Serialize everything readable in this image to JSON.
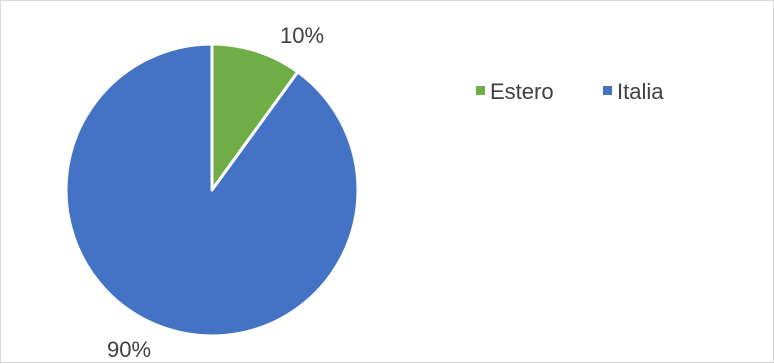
{
  "chart_data": {
    "type": "pie",
    "slices": [
      {
        "label": "Estero",
        "value": 10,
        "color": "#70ad47",
        "data_label": "10%"
      },
      {
        "label": "Italia",
        "value": 90,
        "color": "#4472c4",
        "data_label": "90%"
      }
    ],
    "start_angle_deg": 0,
    "direction": "clockwise",
    "legend": {
      "placement": "right",
      "entries": [
        "Estero",
        "Italia"
      ]
    },
    "title": ""
  }
}
